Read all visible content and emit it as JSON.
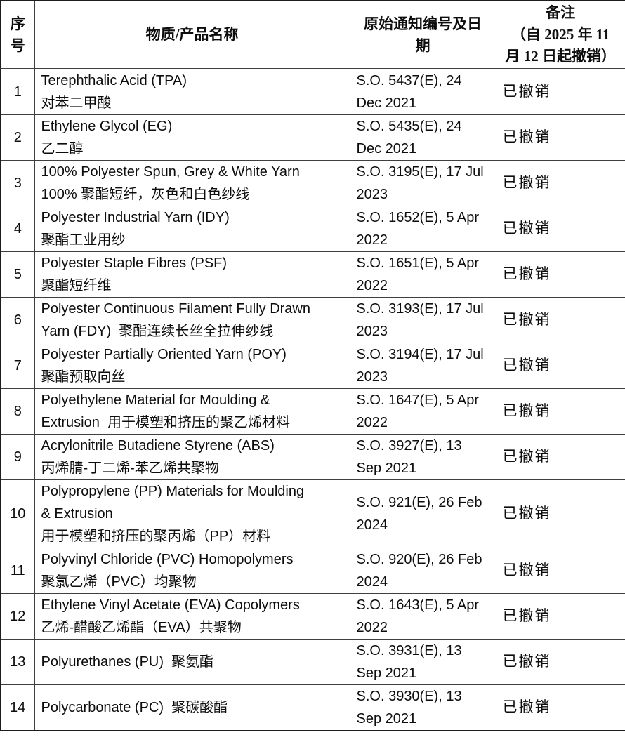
{
  "table": {
    "headers": {
      "serial_lines": [
        "序",
        "号"
      ],
      "name": "物质/产品名称",
      "notification_lines": [
        "原始通知编号及日",
        "期"
      ],
      "remarks_lines": [
        "备注",
        "（自 2025 年 11",
        "月 12 日起撤销）"
      ]
    },
    "rows": [
      {
        "no": "1",
        "name_lines": [
          "Terephthalic Acid (TPA)",
          "对苯二甲酸"
        ],
        "notification_lines": [
          "S.O. 5437(E), 24",
          "Dec 2021"
        ],
        "remark": "已撤销"
      },
      {
        "no": "2",
        "name_lines": [
          "Ethylene Glycol (EG)",
          "乙二醇"
        ],
        "notification_lines": [
          "S.O. 5435(E), 24",
          "Dec 2021"
        ],
        "remark": "已撤销"
      },
      {
        "no": "3",
        "name_lines": [
          "100% Polyester Spun, Grey & White Yarn",
          "100% 聚酯短纤，灰色和白色纱线"
        ],
        "notification_lines": [
          "S.O. 3195(E), 17 Jul",
          "2023"
        ],
        "remark": "已撤销"
      },
      {
        "no": "4",
        "name_lines": [
          "Polyester Industrial Yarn (IDY)",
          "聚酯工业用纱"
        ],
        "notification_lines": [
          "S.O. 1652(E), 5 Apr",
          "2022"
        ],
        "remark": "已撤销"
      },
      {
        "no": "5",
        "name_lines": [
          "Polyester Staple Fibres (PSF)",
          "聚酯短纤维"
        ],
        "notification_lines": [
          "S.O. 1651(E), 5 Apr",
          "2022"
        ],
        "remark": "已撤销"
      },
      {
        "no": "6",
        "name_lines": [
          "Polyester Continuous Filament Fully Drawn",
          "Yarn (FDY)  聚酯连续长丝全拉伸纱线"
        ],
        "notification_lines": [
          "S.O. 3193(E), 17 Jul",
          "2023"
        ],
        "remark": "已撤销"
      },
      {
        "no": "7",
        "name_lines": [
          "Polyester Partially Oriented Yarn (POY)",
          "聚酯预取向丝"
        ],
        "notification_lines": [
          "S.O. 3194(E), 17 Jul",
          "2023"
        ],
        "remark": "已撤销"
      },
      {
        "no": "8",
        "name_lines": [
          "Polyethylene Material for Moulding &",
          "Extrusion  用于模塑和挤压的聚乙烯材料"
        ],
        "notification_lines": [
          "S.O. 1647(E), 5 Apr",
          "2022"
        ],
        "remark": "已撤销"
      },
      {
        "no": "9",
        "name_lines": [
          "Acrylonitrile Butadiene Styrene (ABS)",
          "丙烯腈-丁二烯-苯乙烯共聚物"
        ],
        "notification_lines": [
          "S.O. 3927(E), 13",
          "Sep 2021"
        ],
        "remark": "已撤销"
      },
      {
        "no": "10",
        "name_lines": [
          "Polypropylene (PP) Materials for Moulding",
          "& Extrusion",
          "用于模塑和挤压的聚丙烯（PP）材料"
        ],
        "notification_lines": [
          "S.O. 921(E), 26 Feb",
          "2024"
        ],
        "remark": "已撤销"
      },
      {
        "no": "11",
        "name_lines": [
          "Polyvinyl Chloride (PVC) Homopolymers",
          "聚氯乙烯（PVC）均聚物"
        ],
        "notification_lines": [
          "S.O. 920(E), 26 Feb",
          "2024"
        ],
        "remark": "已撤销"
      },
      {
        "no": "12",
        "name_lines": [
          "Ethylene Vinyl Acetate (EVA) Copolymers",
          "乙烯-醋酸乙烯酯（EVA）共聚物"
        ],
        "notification_lines": [
          "S.O. 1643(E), 5 Apr",
          "2022"
        ],
        "remark": "已撤销"
      },
      {
        "no": "13",
        "name_lines": [
          "Polyurethanes (PU)  聚氨酯"
        ],
        "notification_lines": [
          "S.O. 3931(E), 13",
          "Sep 2021"
        ],
        "remark": "已撤销"
      },
      {
        "no": "14",
        "name_lines": [
          "Polycarbonate (PC)  聚碳酸酯"
        ],
        "notification_lines": [
          "S.O. 3930(E), 13",
          "Sep 2021"
        ],
        "remark": "已撤销"
      }
    ]
  }
}
